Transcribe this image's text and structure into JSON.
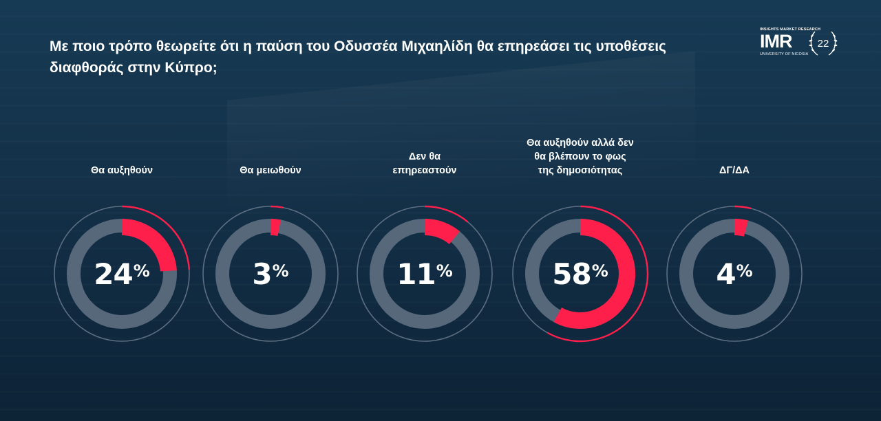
{
  "title": "Με ποιο τρόπο θεωρείτε ότι η παύση του Οδυσσέα Μιχαηλίδη θα επηρεάσει τις υποθέσεις διαφθοράς στην Κύπρο;",
  "logo": {
    "top_text": "INSIGHTS MARKET RESEARCH",
    "mark": "IMR",
    "bottom_text": "UNIVERSITY OF NICOSIA",
    "badge_number": "22"
  },
  "colors": {
    "accent": "#ff1f4b",
    "track": "#56687a",
    "outer_ring": "#5c6e80"
  },
  "chart_data": {
    "type": "pie",
    "title": "Με ποιο τρόπο θεωρείτε ότι η παύση του Οδυσσέα Μιχαηλίδη θα επηρεάσει τις υποθέσεις διαφθοράς στην Κύπρο;",
    "categories": [
      "Θα αυξηθούν",
      "Θα μειωθούν",
      "Δεν θα επηρεαστούν",
      "Θα αυξηθούν αλλά δεν θα βλέπουν το φως της δημοσιότητας",
      "ΔΓ/ΔΑ"
    ],
    "values": [
      24,
      3,
      11,
      58,
      4
    ],
    "unit": "%",
    "items": [
      {
        "label_lines": [
          "Θα αυξηθούν"
        ],
        "value": 24
      },
      {
        "label_lines": [
          "Θα μειωθούν"
        ],
        "value": 3
      },
      {
        "label_lines": [
          "Δεν θα",
          "επηρεαστούν"
        ],
        "value": 11
      },
      {
        "label_lines": [
          "Θα αυξηθούν αλλά δεν",
          "θα βλέπουν το φως",
          "της δημοσιότητας"
        ],
        "value": 58
      },
      {
        "label_lines": [
          "ΔΓ/ΔΑ"
        ],
        "value": 4
      }
    ]
  }
}
